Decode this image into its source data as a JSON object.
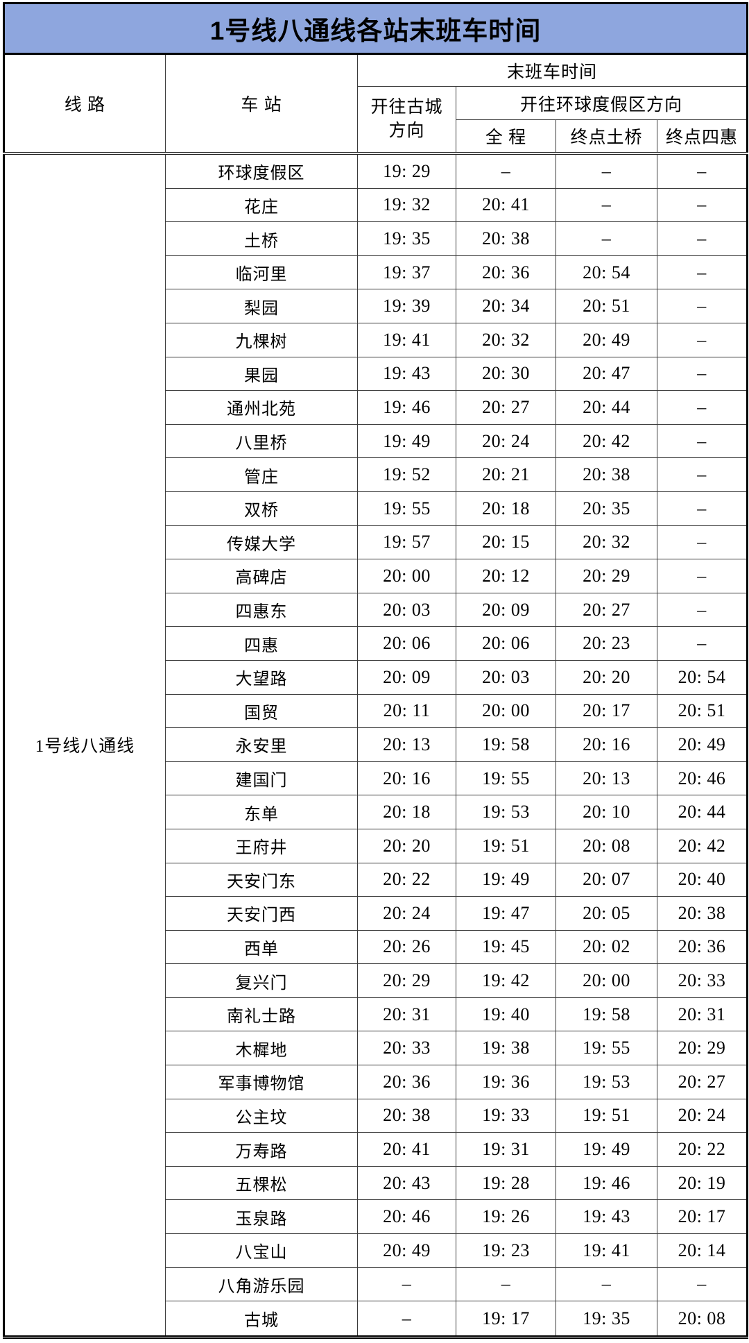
{
  "title": "1号线八通线各站末班车时间",
  "colors": {
    "header_bg": "#8EA6DE",
    "border": "#3a3a3a",
    "outer": "#000000",
    "text": "#000000"
  },
  "table": {
    "headers": {
      "line": "线 路",
      "station": "车 站",
      "last_train_group": "末班车时间",
      "gucheng_direction": "开往古城\n方向",
      "universal_direction_group": "开往环球度假区方向",
      "full_journey": "全 程",
      "terminus_tuqiao": "终点土桥",
      "terminus_sihui": "终点四惠"
    },
    "line_name": "1号线八通线",
    "no_service": "–",
    "rows": [
      {
        "station": "环球度假区",
        "gucheng": "19: 29",
        "full": "–",
        "tuqiao": "–",
        "sihui": "–"
      },
      {
        "station": "花庄",
        "gucheng": "19: 32",
        "full": "20: 41",
        "tuqiao": "–",
        "sihui": "–"
      },
      {
        "station": "土桥",
        "gucheng": "19: 35",
        "full": "20: 38",
        "tuqiao": "–",
        "sihui": "–"
      },
      {
        "station": "临河里",
        "gucheng": "19: 37",
        "full": "20: 36",
        "tuqiao": "20: 54",
        "sihui": "–"
      },
      {
        "station": "梨园",
        "gucheng": "19: 39",
        "full": "20: 34",
        "tuqiao": "20: 51",
        "sihui": "–"
      },
      {
        "station": "九棵树",
        "gucheng": "19: 41",
        "full": "20: 32",
        "tuqiao": "20: 49",
        "sihui": "–"
      },
      {
        "station": "果园",
        "gucheng": "19: 43",
        "full": "20: 30",
        "tuqiao": "20: 47",
        "sihui": "–"
      },
      {
        "station": "通州北苑",
        "gucheng": "19: 46",
        "full": "20: 27",
        "tuqiao": "20: 44",
        "sihui": "–"
      },
      {
        "station": "八里桥",
        "gucheng": "19: 49",
        "full": "20: 24",
        "tuqiao": "20: 42",
        "sihui": "–"
      },
      {
        "station": "管庄",
        "gucheng": "19: 52",
        "full": "20: 21",
        "tuqiao": "20: 38",
        "sihui": "–"
      },
      {
        "station": "双桥",
        "gucheng": "19: 55",
        "full": "20: 18",
        "tuqiao": "20: 35",
        "sihui": "–"
      },
      {
        "station": "传媒大学",
        "gucheng": "19: 57",
        "full": "20: 15",
        "tuqiao": "20: 32",
        "sihui": "–"
      },
      {
        "station": "高碑店",
        "gucheng": "20: 00",
        "full": "20: 12",
        "tuqiao": "20: 29",
        "sihui": "–"
      },
      {
        "station": "四惠东",
        "gucheng": "20: 03",
        "full": "20: 09",
        "tuqiao": "20: 27",
        "sihui": "–"
      },
      {
        "station": "四惠",
        "gucheng": "20: 06",
        "full": "20: 06",
        "tuqiao": "20: 23",
        "sihui": "–"
      },
      {
        "station": "大望路",
        "gucheng": "20: 09",
        "full": "20: 03",
        "tuqiao": "20: 20",
        "sihui": "20: 54"
      },
      {
        "station": "国贸",
        "gucheng": "20: 11",
        "full": "20: 00",
        "tuqiao": "20: 17",
        "sihui": "20: 51"
      },
      {
        "station": "永安里",
        "gucheng": "20: 13",
        "full": "19: 58",
        "tuqiao": "20: 16",
        "sihui": "20: 49"
      },
      {
        "station": "建国门",
        "gucheng": "20: 16",
        "full": "19: 55",
        "tuqiao": "20: 13",
        "sihui": "20: 46"
      },
      {
        "station": "东单",
        "gucheng": "20: 18",
        "full": "19: 53",
        "tuqiao": "20: 10",
        "sihui": "20: 44"
      },
      {
        "station": "王府井",
        "gucheng": "20: 20",
        "full": "19: 51",
        "tuqiao": "20: 08",
        "sihui": "20: 42"
      },
      {
        "station": "天安门东",
        "gucheng": "20: 22",
        "full": "19: 49",
        "tuqiao": "20: 07",
        "sihui": "20: 40"
      },
      {
        "station": "天安门西",
        "gucheng": "20: 24",
        "full": "19: 47",
        "tuqiao": "20: 05",
        "sihui": "20: 38"
      },
      {
        "station": "西单",
        "gucheng": "20: 26",
        "full": "19: 45",
        "tuqiao": "20: 02",
        "sihui": "20: 36"
      },
      {
        "station": "复兴门",
        "gucheng": "20: 29",
        "full": "19: 42",
        "tuqiao": "20: 00",
        "sihui": "20: 33"
      },
      {
        "station": "南礼士路",
        "gucheng": "20: 31",
        "full": "19: 40",
        "tuqiao": "19: 58",
        "sihui": "20: 31"
      },
      {
        "station": "木樨地",
        "gucheng": "20: 33",
        "full": "19: 38",
        "tuqiao": "19: 55",
        "sihui": "20: 29"
      },
      {
        "station": "军事博物馆",
        "gucheng": "20: 36",
        "full": "19: 36",
        "tuqiao": "19: 53",
        "sihui": "20: 27"
      },
      {
        "station": "公主坟",
        "gucheng": "20: 38",
        "full": "19: 33",
        "tuqiao": "19: 51",
        "sihui": "20: 24"
      },
      {
        "station": "万寿路",
        "gucheng": "20: 41",
        "full": "19: 31",
        "tuqiao": "19: 49",
        "sihui": "20: 22"
      },
      {
        "station": "五棵松",
        "gucheng": "20: 43",
        "full": "19: 28",
        "tuqiao": "19: 46",
        "sihui": "20: 19"
      },
      {
        "station": "玉泉路",
        "gucheng": "20: 46",
        "full": "19: 26",
        "tuqiao": "19: 43",
        "sihui": "20: 17"
      },
      {
        "station": "八宝山",
        "gucheng": "20: 49",
        "full": "19: 23",
        "tuqiao": "19: 41",
        "sihui": "20: 14"
      },
      {
        "station": "八角游乐园",
        "gucheng": "–",
        "full": "–",
        "tuqiao": "–",
        "sihui": "–"
      },
      {
        "station": "古城",
        "gucheng": "–",
        "full": "19: 17",
        "tuqiao": "19: 35",
        "sihui": "20: 08"
      }
    ]
  }
}
